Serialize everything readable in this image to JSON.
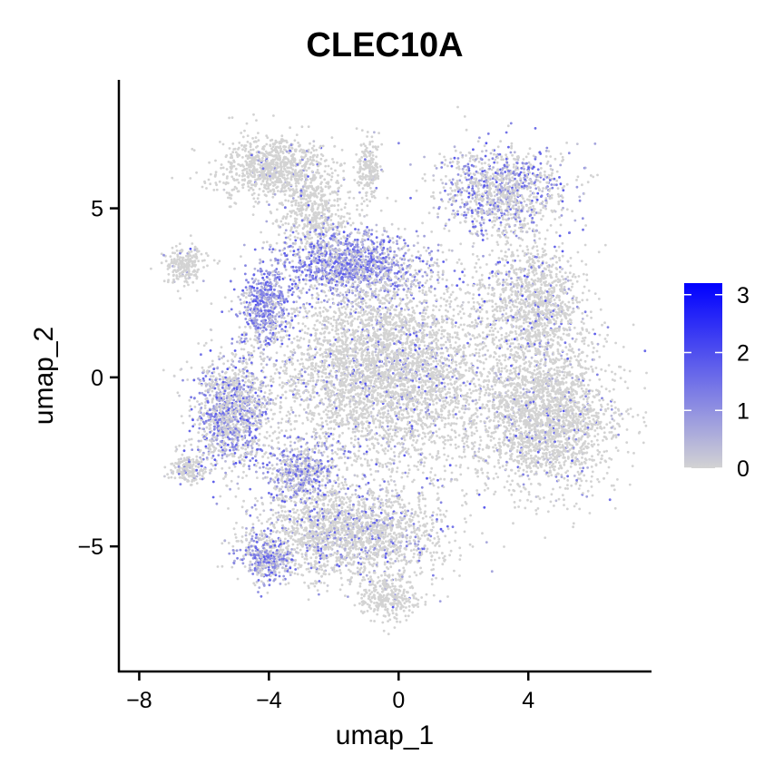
{
  "chart_data": {
    "type": "scatter",
    "title": "CLEC10A",
    "xlabel": "umap_1",
    "ylabel": "umap_2",
    "xlim": [
      -8.6,
      7.8
    ],
    "ylim": [
      -8.7,
      8.8
    ],
    "x_ticks": [
      {
        "value": -8,
        "label": "−8"
      },
      {
        "value": -4,
        "label": "−4"
      },
      {
        "value": 0,
        "label": "0"
      },
      {
        "value": 4,
        "label": "4"
      }
    ],
    "y_ticks": [
      {
        "value": -5,
        "label": "−5"
      },
      {
        "value": 0,
        "label": "0"
      },
      {
        "value": 5,
        "label": "5"
      }
    ],
    "grid": false,
    "legend_position": "right",
    "colorbar": {
      "min": 0,
      "max": 3.2,
      "low_color": "#d3d3d3",
      "high_color": "#0000ff",
      "ticks": [
        {
          "value": 0,
          "label": "0"
        },
        {
          "value": 1,
          "label": "1"
        },
        {
          "value": 2,
          "label": "2"
        },
        {
          "value": 3,
          "label": "3"
        }
      ]
    },
    "point_color": "#d3d3d3",
    "clusters": [
      {
        "name": "top-left-lobe",
        "cx": -3.8,
        "cy": 6.2,
        "rx": 1.6,
        "ry": 0.9,
        "n": 900,
        "expr": 0.05
      },
      {
        "name": "top-left-lobe-b",
        "cx": -2.6,
        "cy": 4.8,
        "rx": 1.0,
        "ry": 1.1,
        "n": 500,
        "expr": 0.1
      },
      {
        "name": "top-thin-spike",
        "cx": -0.9,
        "cy": 6.1,
        "rx": 0.35,
        "ry": 0.8,
        "n": 200,
        "expr": 0.05
      },
      {
        "name": "left-arm",
        "cx": -6.6,
        "cy": 3.3,
        "rx": 0.6,
        "ry": 0.5,
        "n": 220,
        "expr": 0.05
      },
      {
        "name": "upper-middle-band",
        "cx": -1.5,
        "cy": 3.3,
        "rx": 2.0,
        "ry": 0.9,
        "n": 1200,
        "expr": 0.9
      },
      {
        "name": "left-shoulder",
        "cx": -4.1,
        "cy": 2.1,
        "rx": 0.7,
        "ry": 1.0,
        "n": 500,
        "expr": 1.1
      },
      {
        "name": "top-right-lobe",
        "cx": 3.2,
        "cy": 5.5,
        "rx": 1.8,
        "ry": 1.2,
        "n": 1100,
        "expr": 0.45
      },
      {
        "name": "right-upper",
        "cx": 4.2,
        "cy": 2.2,
        "rx": 1.4,
        "ry": 1.6,
        "n": 1100,
        "expr": 0.15
      },
      {
        "name": "center-mass",
        "cx": -0.5,
        "cy": 0.2,
        "rx": 3.3,
        "ry": 2.6,
        "n": 4200,
        "expr": 0.12
      },
      {
        "name": "left-mass",
        "cx": -5.2,
        "cy": -1.1,
        "rx": 1.1,
        "ry": 1.5,
        "n": 1200,
        "expr": 0.5
      },
      {
        "name": "lower-left-tip",
        "cx": -6.5,
        "cy": -2.7,
        "rx": 0.5,
        "ry": 0.4,
        "n": 180,
        "expr": 0.1
      },
      {
        "name": "right-mass",
        "cx": 4.5,
        "cy": -1.2,
        "rx": 2.0,
        "ry": 2.0,
        "n": 2300,
        "expr": 0.1
      },
      {
        "name": "lower-mass",
        "cx": -1.6,
        "cy": -4.6,
        "rx": 2.6,
        "ry": 1.3,
        "n": 2000,
        "expr": 0.2
      },
      {
        "name": "lower-left-purple",
        "cx": -4.1,
        "cy": -5.4,
        "rx": 0.7,
        "ry": 0.6,
        "n": 350,
        "expr": 0.7
      },
      {
        "name": "bottom-tip",
        "cx": -0.3,
        "cy": -6.5,
        "rx": 0.8,
        "ry": 0.6,
        "n": 300,
        "expr": 0.05
      },
      {
        "name": "center-low-purple",
        "cx": -3.0,
        "cy": -2.8,
        "rx": 1.0,
        "ry": 0.8,
        "n": 500,
        "expr": 0.6
      }
    ]
  }
}
